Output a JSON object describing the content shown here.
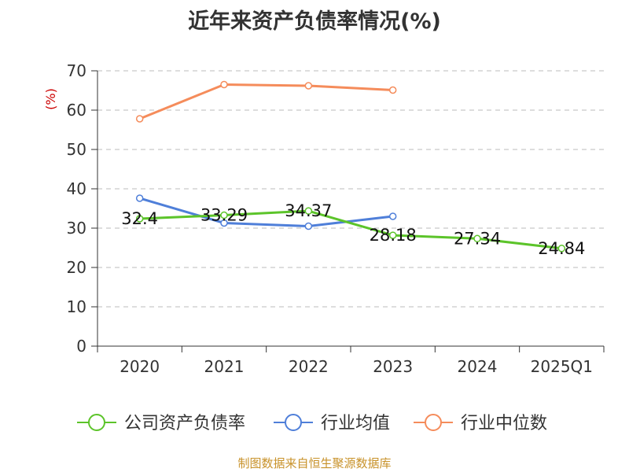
{
  "colors": {
    "company": "#5cc42a",
    "industry_avg": "#4f7fd9",
    "industry_median": "#f58c5b",
    "grid": "#bbbbbb",
    "axis": "#333333",
    "source": "#c8922a"
  },
  "chart_data": {
    "type": "line",
    "title": "近年来资产负债率情况(%)",
    "ylabel": "(%)",
    "xlabel": "",
    "ylim": [
      0,
      70
    ],
    "yticks": [
      0,
      10,
      20,
      30,
      40,
      50,
      60,
      70
    ],
    "categories": [
      "2020",
      "2021",
      "2022",
      "2023",
      "2024",
      "2025Q1"
    ],
    "grid": true,
    "legend_position": "bottom",
    "series": [
      {
        "name": "公司资产负债率",
        "color_key": "company",
        "values": [
          32.4,
          33.29,
          34.37,
          28.18,
          27.34,
          24.84
        ],
        "data_labels": [
          "32.4",
          "33.29",
          "34.37",
          "28.18",
          "27.34",
          "24.84"
        ]
      },
      {
        "name": "行业均值",
        "color_key": "industry_avg",
        "values": [
          37.6,
          31.3,
          30.5,
          33.0,
          null,
          null
        ]
      },
      {
        "name": "行业中位数",
        "color_key": "industry_median",
        "values": [
          57.8,
          66.5,
          66.2,
          65.1,
          null,
          null
        ]
      }
    ]
  },
  "footer": {
    "source": "制图数据来自恒生聚源数据库"
  }
}
